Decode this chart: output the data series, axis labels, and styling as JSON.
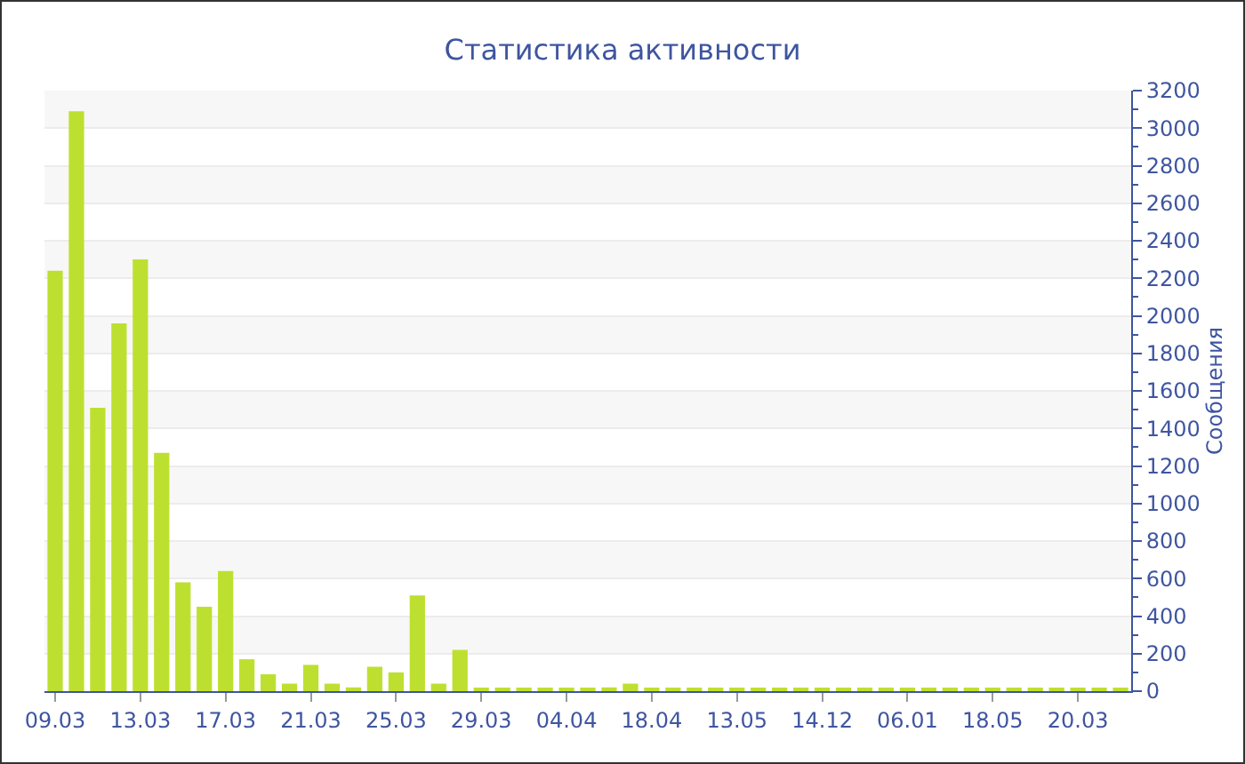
{
  "chart_data": {
    "type": "bar",
    "title": "Статистика активности",
    "ylabel": "Сообщения",
    "categories": [
      "09.03",
      null,
      null,
      null,
      "13.03",
      null,
      null,
      null,
      "17.03",
      null,
      null,
      null,
      "21.03",
      null,
      null,
      null,
      "25.03",
      null,
      null,
      null,
      "29.03",
      null,
      null,
      null,
      "04.04",
      null,
      null,
      null,
      "18.04",
      null,
      null,
      null,
      "13.05",
      null,
      null,
      null,
      "14.12",
      null,
      null,
      null,
      "06.01",
      null,
      null,
      null,
      "18.05",
      null,
      null,
      null,
      "20.03",
      null,
      null
    ],
    "values": [
      2240,
      3090,
      1510,
      1960,
      2300,
      1270,
      580,
      450,
      640,
      170,
      90,
      40,
      140,
      40,
      20,
      130,
      100,
      510,
      40,
      220,
      10,
      10,
      10,
      10,
      10,
      10,
      20,
      40,
      10,
      10,
      10,
      10,
      10,
      10,
      10,
      10,
      10,
      10,
      10,
      10,
      10,
      10,
      10,
      10,
      10,
      10,
      10,
      10,
      10,
      10,
      10
    ],
    "color": "#bde030",
    "ylim": [
      0,
      3200
    ],
    "yticks": [
      0,
      200,
      400,
      600,
      800,
      1000,
      1200,
      1400,
      1600,
      1800,
      2000,
      2200,
      2400,
      2600,
      2800,
      3000,
      3200
    ],
    "grid": true,
    "legend": false
  }
}
